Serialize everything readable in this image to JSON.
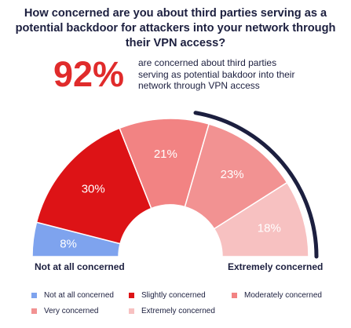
{
  "chart_data": {
    "type": "pie",
    "title": "How concerned are you about third parties serving as a potential backdoor for attackers into your network through their VPN access?",
    "highlight": {
      "value": "92%",
      "text": "are concerned about third parties serving as potential bakdoor into their network through VPN access"
    },
    "categories": [
      "Not at all concerned",
      "Slightly concerned",
      "Moderately concerned",
      "Very concerned",
      "Extremely concerned"
    ],
    "values": [
      8,
      30,
      21,
      23,
      18
    ],
    "value_labels": [
      "8%",
      "30%",
      "21%",
      "23%",
      "18%"
    ],
    "colors": [
      "#7ea3ee",
      "#dd1316",
      "#f28383",
      "#f29292",
      "#f7c1c1"
    ],
    "arc_color": "#1c1f3f",
    "axis_labels": {
      "left": "Not at all concerned",
      "right": "Extremely concerned"
    },
    "legend": {
      "placement": "bottom",
      "items": [
        {
          "label": "Not at all concerned",
          "color": "#7ea3ee"
        },
        {
          "label": "Slightly concerned",
          "color": "#dd1316"
        },
        {
          "label": "Moderately concerned",
          "color": "#f28383"
        },
        {
          "label": "Very concerned",
          "color": "#f29292"
        },
        {
          "label": "Extremely concerned",
          "color": "#f7c1c1"
        }
      ]
    }
  }
}
